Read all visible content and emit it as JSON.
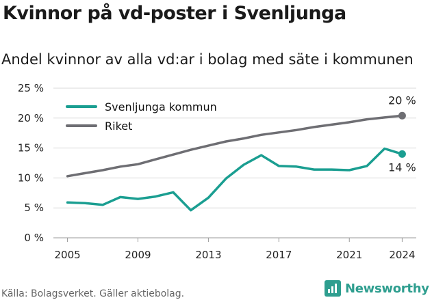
{
  "title": "Kvinnor på vd-poster i Svenljunga",
  "subtitle": "Andel kvinnor av alla vd:ar i bolag med säte i kommunen",
  "source": "Källa: Bolagsverket. Gäller aktiebolag.",
  "brand": {
    "name": "Newsworthy",
    "icon": "newsworthy-logo-icon"
  },
  "colors": {
    "svenljunga": "#1a9e91",
    "riket": "#6e6e73",
    "grid": "#d9d9d9"
  },
  "chart_data": {
    "type": "line",
    "x": [
      2005,
      2006,
      2007,
      2008,
      2009,
      2010,
      2011,
      2012,
      2013,
      2014,
      2015,
      2016,
      2017,
      2018,
      2019,
      2020,
      2021,
      2022,
      2023,
      2024
    ],
    "series": [
      {
        "name": "Svenljunga kommun",
        "color": "#1a9e91",
        "values": [
          5.9,
          5.8,
          5.5,
          6.8,
          6.5,
          6.9,
          7.6,
          4.6,
          6.7,
          9.9,
          12.2,
          13.8,
          12.0,
          11.9,
          11.4,
          11.4,
          11.3,
          12.0,
          14.9,
          14.0
        ],
        "end_label": "14 %"
      },
      {
        "name": "Riket",
        "color": "#6e6e73",
        "values": [
          10.3,
          10.8,
          11.3,
          11.9,
          12.3,
          13.1,
          13.9,
          14.7,
          15.4,
          16.1,
          16.6,
          17.2,
          17.6,
          18.0,
          18.5,
          18.9,
          19.3,
          19.8,
          20.1,
          20.4
        ],
        "end_label": "20 %"
      }
    ],
    "x_ticks": [
      "2005",
      "2009",
      "2013",
      "2017",
      "2021",
      "2024"
    ],
    "y_ticks": [
      "0 %",
      "5 %",
      "10 %",
      "15 %",
      "20 %",
      "25 %"
    ],
    "ylim": [
      0,
      25
    ],
    "grid": true,
    "legend_position": "top-left"
  }
}
